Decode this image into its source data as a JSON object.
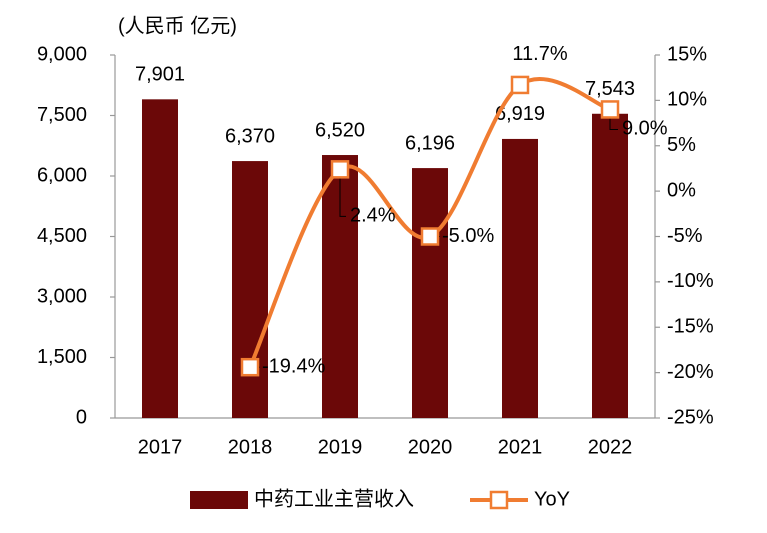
{
  "chart_data": {
    "type": "bar_line",
    "unit_label": "(人民币 亿元)",
    "categories": [
      "2017",
      "2018",
      "2019",
      "2020",
      "2021",
      "2022"
    ],
    "series": [
      {
        "name": "中药工业主营收入",
        "type": "bar",
        "color": "#6b0808",
        "values": [
          7901,
          6370,
          6520,
          6196,
          6919,
          7543
        ],
        "value_labels": [
          "7,901",
          "6,370",
          "6,520",
          "6,196",
          "6,919",
          "7,543"
        ]
      },
      {
        "name": "YoY",
        "type": "line",
        "axis": "y2",
        "color": "#f07c31",
        "values": [
          null,
          -19.4,
          2.4,
          -5.0,
          11.7,
          9.0
        ],
        "value_labels": [
          null,
          "-19.4%",
          "2.4%",
          "-5.0%",
          "11.7%",
          "9.0%"
        ]
      }
    ],
    "ylim": [
      0,
      9000
    ],
    "yticks": [
      0,
      {
        "value": 1500,
        "label": "1,500"
      },
      {
        "value": 3000,
        "label": "3,000"
      },
      {
        "value": 4500,
        "label": "4,500"
      },
      {
        "value": 6000,
        "label": "6,000"
      },
      {
        "value": 7500,
        "label": "7,500"
      },
      {
        "value": 9000,
        "label": "9,000"
      }
    ],
    "y2lim": [
      -25,
      15
    ],
    "y2ticks": [
      {
        "value": -25,
        "label": "-25%"
      },
      {
        "value": -20,
        "label": "-20%"
      },
      {
        "value": -15,
        "label": "-15%"
      },
      {
        "value": -10,
        "label": "-10%"
      },
      {
        "value": -5,
        "label": "-5%"
      },
      {
        "value": 0,
        "label": "0%"
      },
      {
        "value": 5,
        "label": "5%"
      },
      {
        "value": 10,
        "label": "10%"
      },
      {
        "value": 15,
        "label": "15%"
      }
    ],
    "legend": "bottom"
  }
}
